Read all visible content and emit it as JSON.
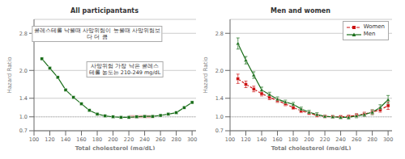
{
  "chart_data": [
    {
      "type": "line",
      "title": "All participantants",
      "x_label": "Total cholesterol (mg/dL)",
      "y_label": "Hazard Ratio",
      "x": [
        110,
        120,
        130,
        140,
        150,
        160,
        170,
        180,
        190,
        200,
        210,
        220,
        230,
        240,
        250,
        260,
        270,
        280,
        290,
        300
      ],
      "values": [
        2.25,
        2.05,
        1.85,
        1.58,
        1.42,
        1.28,
        1.14,
        1.06,
        1.02,
        1.0,
        0.99,
        0.99,
        1.0,
        1.01,
        1.01,
        1.03,
        1.06,
        1.09,
        1.2,
        1.31
      ],
      "color": "#1a6e1a",
      "marker": "square",
      "line_style": "solid",
      "xlim": [
        100,
        305
      ],
      "ylim": [
        0.7,
        3.1
      ],
      "xticks": [
        100,
        120,
        140,
        160,
        180,
        200,
        220,
        240,
        260,
        280,
        300
      ],
      "yticks": [
        0.7,
        {
          "value": 1,
          "label": "1.0"
        },
        1.4,
        {
          "value": 2,
          "label": "2.0"
        },
        2.8
      ],
      "grid": true,
      "reference_line": {
        "y": 1,
        "color": "#bbbbbb"
      },
      "highlight": {
        "x1": 220,
        "x2": 252,
        "y1": 0.98,
        "y2": 1.03,
        "color": "#f4b0b0"
      },
      "annotations": [
        "콜레스테롤 낙을때 사망위험이 높을때 사망위험보\n다 더 큼",
        "사망위험 가장 낙은 콜레스\n테롤 농도는 210-249 mg/dL"
      ]
    },
    {
      "type": "line",
      "title": "Men and women",
      "x_label": "Total cholesterol (mg/dL)",
      "y_label": "Hazard Ratio",
      "x": [
        110,
        120,
        130,
        140,
        150,
        160,
        170,
        180,
        190,
        200,
        210,
        220,
        230,
        240,
        250,
        260,
        270,
        280,
        290,
        300
      ],
      "series": [
        {
          "name": "Women",
          "color": "#cc1111",
          "marker": "square",
          "line_style": "dashed",
          "values": [
            1.82,
            1.7,
            1.6,
            1.5,
            1.42,
            1.35,
            1.28,
            1.2,
            1.13,
            1.08,
            1.03,
            1.01,
            1.0,
            1.0,
            1.01,
            1.03,
            1.06,
            1.1,
            1.15,
            1.24
          ],
          "errors": [
            0.1,
            0.07,
            0.06,
            0.05,
            0.05,
            0.04,
            0.04,
            0.04,
            0.04,
            0.03,
            0.03,
            0.03,
            0.03,
            0.03,
            0.03,
            0.04,
            0.04,
            0.05,
            0.05,
            0.08
          ]
        },
        {
          "name": "Men",
          "color": "#1a6e1a",
          "marker": "triangle",
          "line_style": "solid",
          "values": [
            2.58,
            2.22,
            1.9,
            1.58,
            1.48,
            1.38,
            1.32,
            1.27,
            1.17,
            1.1,
            1.05,
            1.01,
            1.0,
            0.99,
            0.99,
            1.02,
            1.05,
            1.1,
            1.2,
            1.37
          ],
          "errors": [
            0.12,
            0.08,
            0.07,
            0.06,
            0.05,
            0.05,
            0.04,
            0.04,
            0.04,
            0.04,
            0.04,
            0.03,
            0.03,
            0.03,
            0.04,
            0.04,
            0.04,
            0.05,
            0.06,
            0.09
          ]
        }
      ],
      "xlim": [
        100,
        305
      ],
      "ylim": [
        0.7,
        3.1
      ],
      "xticks": [
        100,
        120,
        140,
        160,
        180,
        200,
        220,
        240,
        260,
        280,
        300
      ],
      "yticks": [
        0.7,
        {
          "value": 1,
          "label": "1.0"
        },
        1.4,
        {
          "value": 2,
          "label": "2.0"
        },
        2.8
      ],
      "grid": true,
      "reference_line": {
        "y": 1,
        "color": "#bbbbbb"
      },
      "legend": "upper right"
    }
  ]
}
